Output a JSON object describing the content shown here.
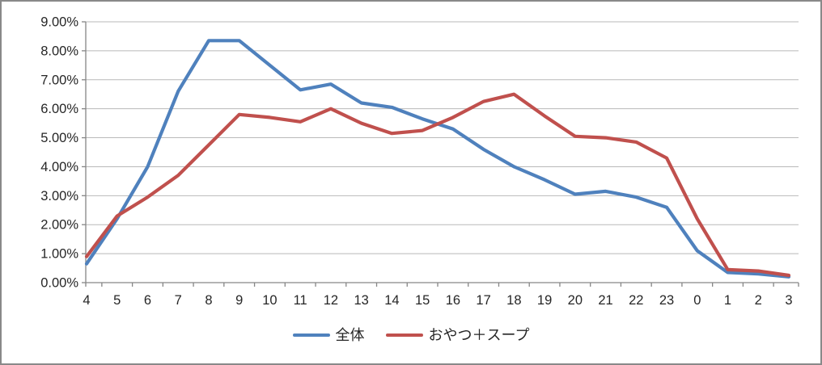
{
  "chart_data": {
    "type": "line",
    "title": "",
    "xlabel": "",
    "ylabel": "",
    "categories": [
      "4",
      "5",
      "6",
      "7",
      "8",
      "9",
      "10",
      "11",
      "12",
      "13",
      "14",
      "15",
      "16",
      "17",
      "18",
      "19",
      "20",
      "21",
      "22",
      "23",
      "0",
      "1",
      "2",
      "3"
    ],
    "series": [
      {
        "name": "全体",
        "color": "#4F81BD",
        "values": [
          0.65,
          2.2,
          4.0,
          6.6,
          8.35,
          8.35,
          7.5,
          6.65,
          6.85,
          6.2,
          6.05,
          5.65,
          5.3,
          4.6,
          4.0,
          3.55,
          3.05,
          3.15,
          2.95,
          2.6,
          1.1,
          0.35,
          0.3,
          0.2
        ]
      },
      {
        "name": "おやつ＋スープ",
        "color": "#C0504D",
        "values": [
          0.9,
          2.3,
          2.95,
          3.7,
          4.75,
          5.8,
          5.7,
          5.55,
          6.0,
          5.5,
          5.15,
          5.25,
          5.7,
          6.25,
          6.5,
          5.75,
          5.05,
          5.0,
          4.85,
          4.3,
          2.2,
          0.45,
          0.4,
          0.25
        ]
      }
    ],
    "y_ticks": [
      "0.00%",
      "1.00%",
      "2.00%",
      "3.00%",
      "4.00%",
      "5.00%",
      "6.00%",
      "7.00%",
      "8.00%",
      "9.00%"
    ],
    "ylim": [
      0,
      9
    ],
    "grid": true,
    "legend_position": "bottom"
  },
  "colors": {
    "background": "#FFFFFF",
    "border": "#898989",
    "gridline": "#B9B9B9",
    "axis": "#868686",
    "tick_label": "#262626"
  }
}
